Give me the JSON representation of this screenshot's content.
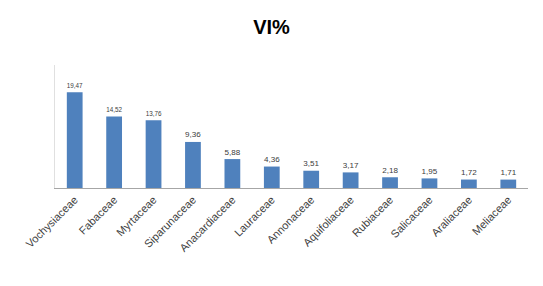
{
  "chart_data": {
    "type": "bar",
    "title": "VI%",
    "categories": [
      "Vochysiaceae",
      "Fabaceae",
      "Myrtaceae",
      "Siparunaceae",
      "Anacardiaceae",
      "Lauraceae",
      "Annonaceae",
      "Aquifoliaceae",
      "Rubiaceae",
      "Salicaceae",
      "Araliaceae",
      "Meliaceae"
    ],
    "values": [
      19.47,
      14.52,
      13.76,
      9.36,
      5.88,
      4.36,
      3.51,
      3.17,
      2.18,
      1.95,
      1.72,
      1.71
    ],
    "value_labels": [
      "19,47",
      "14,52",
      "13,76",
      "9,36",
      "5,88",
      "4,36",
      "3,51",
      "3,17",
      "2,18",
      "1,95",
      "1,72",
      "1,71"
    ],
    "color": "#4f81bd",
    "ylim": [
      0,
      25
    ],
    "grid": false,
    "data_labels": true,
    "tick_labels": "x"
  }
}
